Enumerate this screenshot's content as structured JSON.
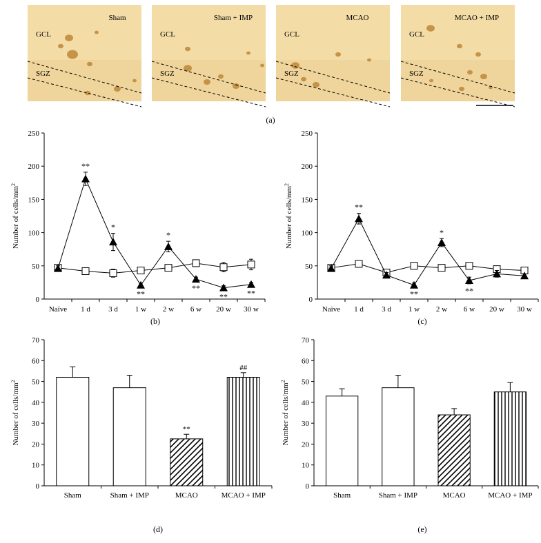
{
  "colors": {
    "tissue": "#f3dca6",
    "tissue_dark": "#e9c98a",
    "cell": "#b98232"
  },
  "panel_a": {
    "label": "(a)",
    "images": [
      {
        "title": "Sham",
        "gcl": "GCL",
        "sgz": "SGZ"
      },
      {
        "title": "Sham + IMP",
        "gcl": "GCL",
        "sgz": "SGZ"
      },
      {
        "title": "MCAO",
        "gcl": "GCL",
        "sgz": "SGZ"
      },
      {
        "title": "MCAO + IMP",
        "gcl": "GCL",
        "sgz": "SGZ"
      }
    ]
  },
  "chart_data": [
    {
      "panel": "(b)",
      "type": "line",
      "categories": [
        "Naïve",
        "1 d",
        "3 d",
        "1 w",
        "2 w",
        "6 w",
        "20 w",
        "30 w"
      ],
      "ylabel": "Number of cells/mm",
      "ylabel_sup": "2",
      "ylim": [
        0,
        250
      ],
      "yticks": [
        0,
        50,
        100,
        150,
        200,
        250
      ],
      "series": [
        {
          "marker": "open-square",
          "values": [
            47,
            42,
            39,
            43,
            47,
            54,
            48,
            52
          ],
          "errors": [
            4,
            5,
            6,
            3,
            3,
            5,
            7,
            8
          ]
        },
        {
          "marker": "filled-triangle",
          "values": [
            46,
            181,
            86,
            21,
            79,
            30,
            17,
            22
          ],
          "errors": [
            4,
            10,
            13,
            3,
            8,
            3,
            3,
            3
          ]
        }
      ],
      "annotations": [
        {
          "x": "1 d",
          "text": "**",
          "pos": "above"
        },
        {
          "x": "3 d",
          "text": "*",
          "pos": "above"
        },
        {
          "x": "1 w",
          "text": "**",
          "pos": "below"
        },
        {
          "x": "2 w",
          "text": "*",
          "pos": "above"
        },
        {
          "x": "6 w",
          "text": "**",
          "pos": "below"
        },
        {
          "x": "20 w",
          "text": "**",
          "pos": "below"
        },
        {
          "x": "30 w",
          "text": "**",
          "pos": "below"
        }
      ]
    },
    {
      "panel": "(c)",
      "type": "line",
      "categories": [
        "Naïve",
        "1 d",
        "3 d",
        "1 w",
        "2 w",
        "6 w",
        "20 w",
        "30 w"
      ],
      "ylabel": "Number of cells/mm",
      "ylabel_sup": "2",
      "ylim": [
        0,
        250
      ],
      "yticks": [
        0,
        50,
        100,
        150,
        200,
        250
      ],
      "series": [
        {
          "marker": "open-square",
          "values": [
            47,
            53,
            40,
            50,
            47,
            50,
            45,
            43
          ],
          "errors": [
            4,
            5,
            4,
            3,
            5,
            3,
            3,
            3
          ]
        },
        {
          "marker": "filled-triangle",
          "values": [
            46,
            121,
            36,
            21,
            85,
            28,
            38,
            35
          ],
          "errors": [
            4,
            8,
            4,
            3,
            6,
            5,
            5,
            3
          ]
        }
      ],
      "annotations": [
        {
          "x": "1 d",
          "text": "**",
          "pos": "above"
        },
        {
          "x": "1 w",
          "text": "**",
          "pos": "below"
        },
        {
          "x": "2 w",
          "text": "*",
          "pos": "above"
        },
        {
          "x": "6 w",
          "text": "**",
          "pos": "below"
        }
      ]
    },
    {
      "panel": "(d)",
      "type": "bar",
      "categories": [
        "Sham",
        "Sham + IMP",
        "MCAO",
        "MCAO + IMP"
      ],
      "fills": [
        "open",
        "open",
        "diagonal-hatch",
        "vertical-stripes"
      ],
      "values": [
        52,
        47,
        22.5,
        52
      ],
      "errors": [
        5,
        6,
        2.2,
        2.2
      ],
      "bar_labels": [
        "",
        "",
        "**",
        "##"
      ],
      "ylabel": "Number of cells/mm",
      "ylabel_sup": "2",
      "ylim": [
        0,
        70
      ],
      "yticks": [
        0,
        10,
        20,
        30,
        40,
        50,
        60,
        70
      ]
    },
    {
      "panel": "(e)",
      "type": "bar",
      "categories": [
        "Sham",
        "Sham + IMP",
        "MCAO",
        "MCAO + IMP"
      ],
      "fills": [
        "open",
        "open",
        "diagonal-hatch",
        "vertical-stripes"
      ],
      "values": [
        43,
        47,
        34,
        45
      ],
      "errors": [
        3.5,
        6,
        3,
        4.5
      ],
      "bar_labels": [
        "",
        "",
        "",
        ""
      ],
      "ylabel": "Number of cells/mm",
      "ylabel_sup": "2",
      "ylim": [
        0,
        70
      ],
      "yticks": [
        0,
        10,
        20,
        30,
        40,
        50,
        60,
        70
      ]
    }
  ]
}
